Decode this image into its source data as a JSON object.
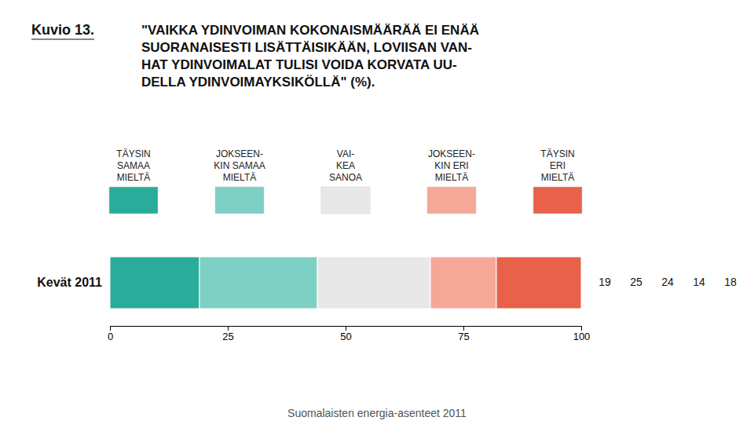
{
  "chart_data": {
    "type": "bar",
    "orientation": "horizontal",
    "stacked": true,
    "title": "\"VAIKKA YDINVOIMAN KOKONAISMÄÄRÄÄ EI ENÄÄ\nSUORANAISESTI LISÄTTÄISIKÄÄN, LOVIISAN VAN-\nHAT YDINVOIMALAT TULISI VOIDA KORVATA UU-\nDELLA YDINVOIMAYKSIKÖLLÄ\" (%).",
    "annotations": [
      "Kuvio 13.",
      "Suomalaisten energia-asenteet 2011"
    ],
    "categories": [
      "Kevät 2011"
    ],
    "series": [
      {
        "name": "TÄYSIN\nSAMAA\nMIELTÄ",
        "color": "#2aac9b",
        "values": [
          19
        ]
      },
      {
        "name": "JOKSEEN-\nKIN SAMAA\nMIELTÄ",
        "color": "#7ecfc4",
        "values": [
          25
        ]
      },
      {
        "name": "VAI-\nKEA\nSANOA",
        "color": "#e8e8e8",
        "values": [
          24
        ]
      },
      {
        "name": "JOKSEEN-\nKIN ERI\nMIELTÄ",
        "color": "#f5a898",
        "values": [
          14
        ]
      },
      {
        "name": "TÄYSIN\nERI\nMIELTÄ",
        "color": "#e8614a",
        "values": [
          18
        ]
      }
    ],
    "xlim": [
      0,
      100
    ],
    "xticks": [
      0,
      25,
      50,
      75,
      100
    ],
    "legend": "top",
    "data_labels": true,
    "grid": false
  }
}
